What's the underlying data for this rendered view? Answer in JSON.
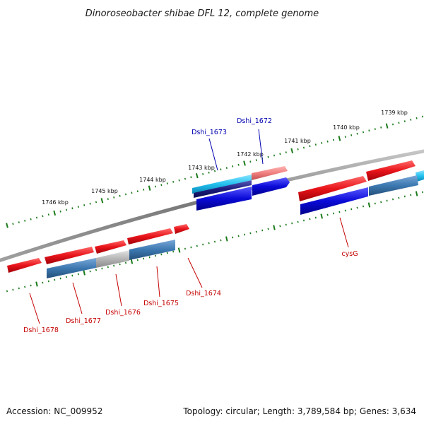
{
  "title": "Dinoroseobacter shibae DFL 12, complete genome",
  "accession_text": "Accession: NC_009952",
  "topology_text": "Topology: circular; Length: 3,789,584 bp; Genes: 3,634",
  "colors": {
    "forward_cds": "#e8141a",
    "reverse_cds": "#0a0ad8",
    "reverse_alt": "#3c78b0",
    "highlight_cyan": "#22c0ee",
    "highlight_pink": "#f08080",
    "navy": "#1c1c80",
    "grey": "#b4b4b4",
    "backbone": "#8a8a8a",
    "tick_major": "#1a7a1a",
    "label_red": "#c40000",
    "label_blue": "#0000b0"
  },
  "ticks": [
    "1739 kbp",
    "1740 kbp",
    "1741 kbp",
    "1742 kbp",
    "1743 kbp",
    "1744 kbp",
    "1745 kbp",
    "1746 kbp"
  ],
  "gene_labels_top": [
    {
      "name": "Dshi_1672",
      "color": "blue"
    },
    {
      "name": "Dshi_1673",
      "color": "blue"
    }
  ],
  "gene_labels_bottom": [
    {
      "name": "cysG",
      "color": "red"
    },
    {
      "name": "Dshi_1674",
      "color": "red"
    },
    {
      "name": "Dshi_1675",
      "color": "red"
    },
    {
      "name": "Dshi_1676",
      "color": "red"
    },
    {
      "name": "Dshi_1677",
      "color": "red"
    },
    {
      "name": "Dshi_1678",
      "color": "red"
    }
  ]
}
